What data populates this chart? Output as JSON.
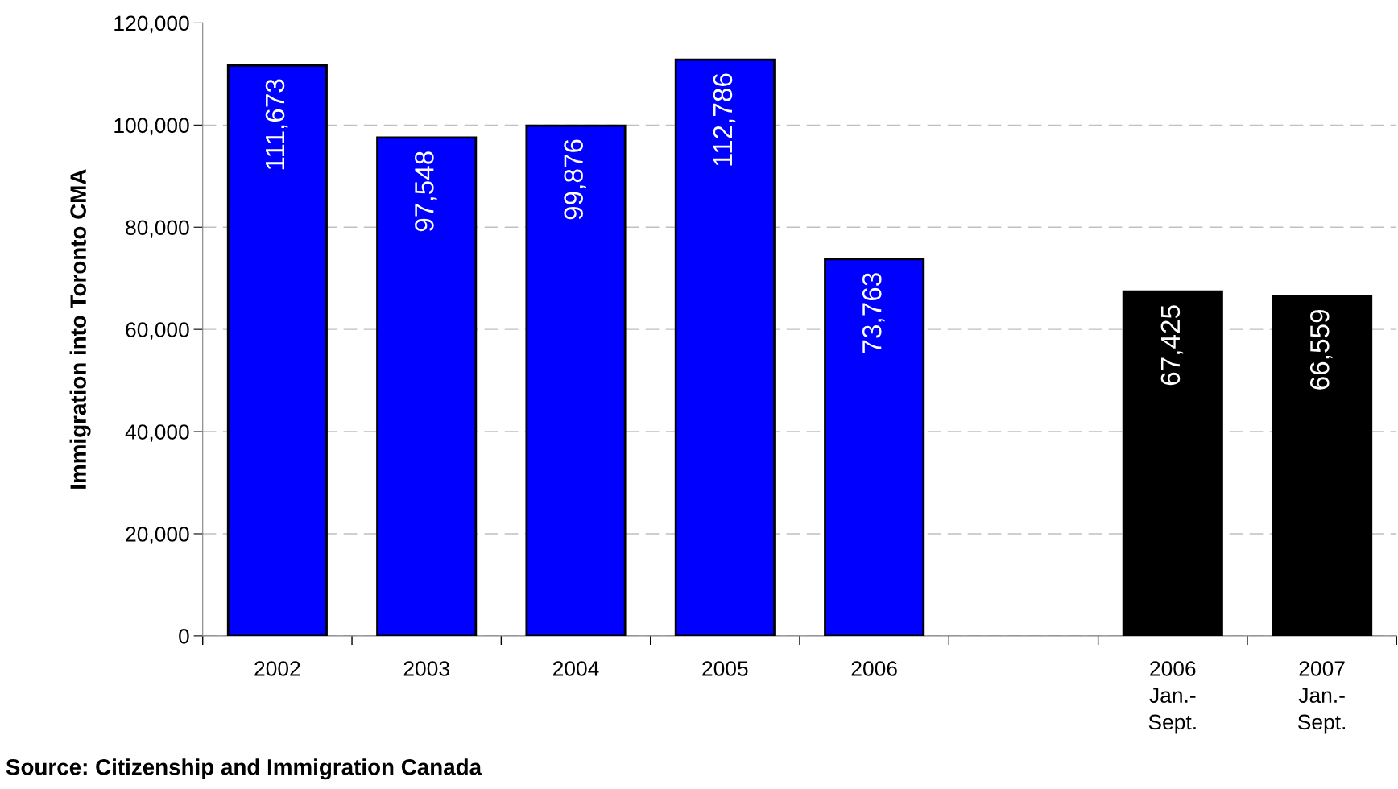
{
  "chart_data": {
    "type": "bar",
    "ylabel": "Immigration into Toronto CMA",
    "categories": [
      "2002",
      "2003",
      "2004",
      "2005",
      "2006",
      null,
      "2006\nJan.-\nSept.",
      "2007\nJan.-\nSept."
    ],
    "values": [
      111673,
      97548,
      99876,
      112786,
      73763,
      null,
      67425,
      66559
    ],
    "value_labels": [
      "111,673",
      "97,548",
      "99,876",
      "112,786",
      "73,763",
      null,
      "67,425",
      "66,559"
    ],
    "colors": [
      "#0000ff",
      "#0000ff",
      "#0000ff",
      "#0000ff",
      "#0000ff",
      null,
      "#000000",
      "#000000"
    ],
    "ylim": [
      0,
      120000
    ],
    "yticks": [
      {
        "value": 0,
        "label": "0"
      },
      {
        "value": 20000,
        "label": "20,000"
      },
      {
        "value": 40000,
        "label": "40,000"
      },
      {
        "value": 60000,
        "label": "60,000"
      },
      {
        "value": 80000,
        "label": "80,000"
      },
      {
        "value": 100000,
        "label": "100,000"
      },
      {
        "value": 120000,
        "label": "120,000"
      }
    ],
    "grid": "y",
    "annotations": [
      "Source: Citizenship and Immigration Canada"
    ]
  }
}
